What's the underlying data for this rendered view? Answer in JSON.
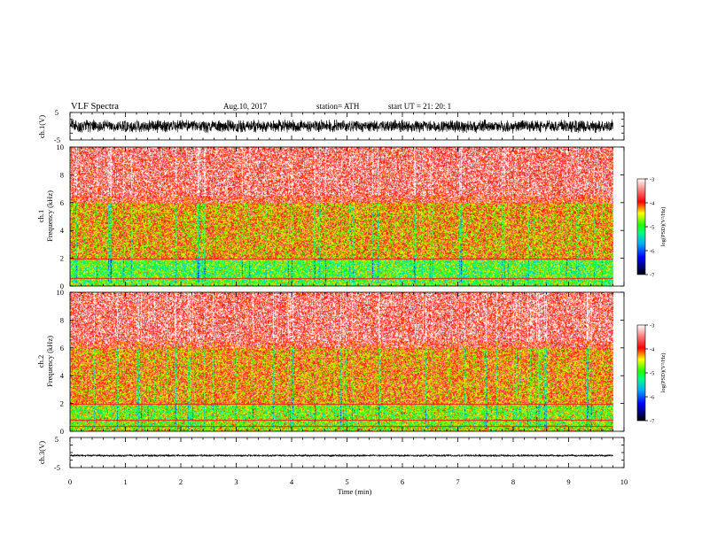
{
  "header": {
    "title": "VLF  Spectra",
    "date": "Aug.10, 2017",
    "station": "station= ATH",
    "start": "start  UT  =    21: 20: 1"
  },
  "chart_data": [
    {
      "type": "line",
      "name": "ch1-waveform",
      "ylabel": "ch.1(V)",
      "ylim": [
        -5,
        5
      ],
      "y_ticks": [
        "5",
        "-5"
      ],
      "x_range_min": [
        0,
        9.8
      ],
      "amplitude_V": 2.2
    },
    {
      "type": "heatmap",
      "name": "ch1-spectrogram",
      "ylabel": "ch.1\nFrequency (kHz)",
      "ylim_kHz": [
        0,
        10
      ],
      "y_ticks": [
        "0",
        "2",
        "4",
        "6",
        "8",
        "10"
      ],
      "x_range_min": [
        0,
        9.8
      ],
      "colorbar": {
        "label": "log(PSD)(V²/Hz)",
        "range": [
          -7,
          -3
        ],
        "ticks": [
          "-3",
          "-4",
          "-5",
          "-6",
          "-7"
        ]
      },
      "bands": [
        {
          "freq_kHz": [
            0,
            2.0
          ],
          "dominant_log_psd": -4.8
        },
        {
          "freq_kHz": [
            2.0,
            6.0
          ],
          "dominant_log_psd": -4.1
        },
        {
          "freq_kHz": [
            6.0,
            10.0
          ],
          "dominant_log_psd": -3.6
        }
      ],
      "line_tones_kHz": [
        0.6,
        2.0
      ]
    },
    {
      "type": "heatmap",
      "name": "ch2-spectrogram",
      "ylabel": "ch.2\nFrequency (kHz)",
      "ylim_kHz": [
        0,
        10
      ],
      "y_ticks": [
        "0",
        "2",
        "4",
        "6",
        "8",
        "10"
      ],
      "x_range_min": [
        0,
        9.8
      ],
      "colorbar": {
        "label": "log(PSD)(V²/Hz)",
        "range": [
          -7,
          -3
        ],
        "ticks": [
          "-3",
          "-4",
          "-5",
          "-6",
          "-7"
        ]
      },
      "bands": [
        {
          "freq_kHz": [
            0,
            2.0
          ],
          "dominant_log_psd": -4.6
        },
        {
          "freq_kHz": [
            2.0,
            6.0
          ],
          "dominant_log_psd": -4.0
        },
        {
          "freq_kHz": [
            6.0,
            10.0
          ],
          "dominant_log_psd": -3.6
        }
      ],
      "line_tones_kHz": [
        0.4,
        0.8,
        2.0
      ]
    },
    {
      "type": "line",
      "name": "ch3-waveform",
      "ylabel": "ch.3(V)",
      "ylim": [
        -5,
        5
      ],
      "y_ticks": [
        "5",
        "-5"
      ],
      "x_range_min": [
        0,
        9.8
      ],
      "amplitude_V": 0.3,
      "offset_V": -1.0
    }
  ],
  "x_axis": {
    "label": "Time  (min)",
    "range": [
      0,
      10
    ],
    "ticks": [
      "0",
      "1",
      "2",
      "3",
      "4",
      "5",
      "6",
      "7",
      "8",
      "9",
      "10"
    ]
  }
}
